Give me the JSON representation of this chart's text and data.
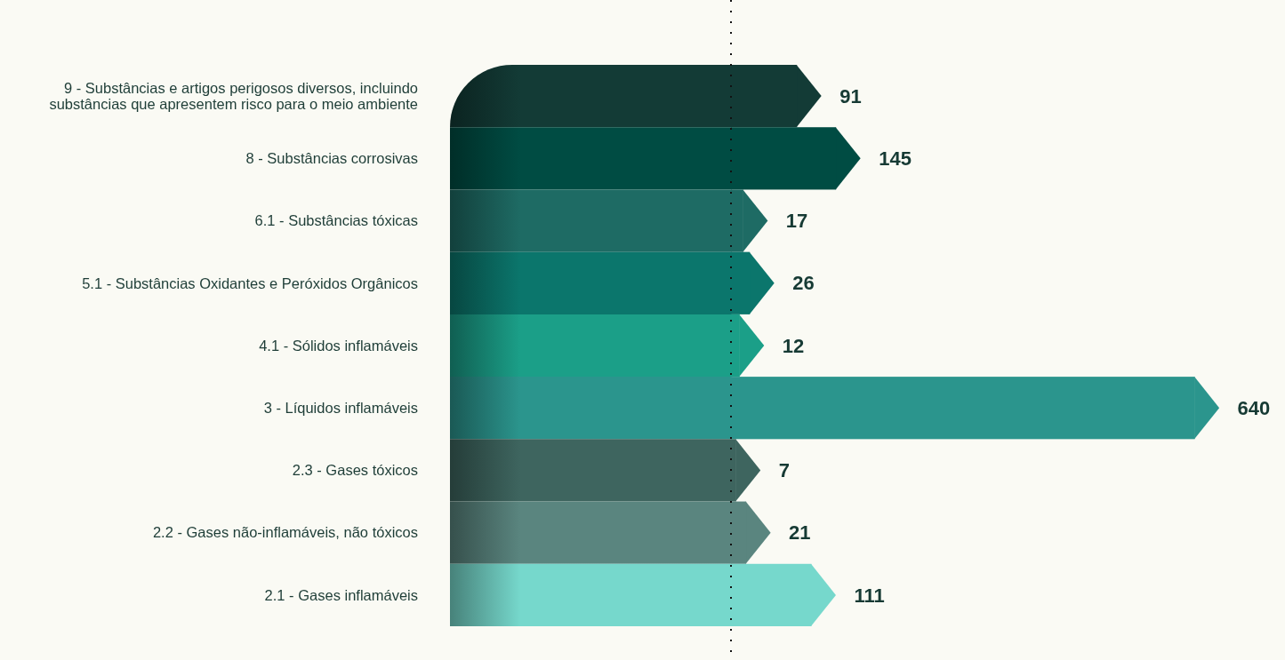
{
  "chart_data": {
    "type": "bar",
    "orientation": "horizontal",
    "data_labels": true,
    "categories": [
      "9 - Substâncias e artigos perigosos diversos, incluindo substâncias que apresentem risco para o meio ambiente",
      "8 - Substâncias corrosivas",
      "6.1 - Substâncias tóxicas",
      "5.1 - Substâncias Oxidantes e Peróxidos Orgânicos",
      "4.1 - Sólidos inflamáveis",
      "3 - Líquidos inflamáveis",
      "2.3 - Gases tóxicos",
      "2.2 - Gases não-inflamáveis, não tóxicos",
      "2.1 - Gases inflamáveis"
    ],
    "values": [
      91,
      145,
      17,
      26,
      12,
      640,
      7,
      21,
      111
    ],
    "colors": [
      "#133b36",
      "#004c43",
      "#1e6b64",
      "#0b766c",
      "#1b9f88",
      "#2b958d",
      "#3e655f",
      "#5a857f",
      "#76d8cc"
    ],
    "ref_lines": [
      {
        "axis": "x",
        "value": 0,
        "line_style": "dotted",
        "color": "#111111"
      }
    ]
  }
}
